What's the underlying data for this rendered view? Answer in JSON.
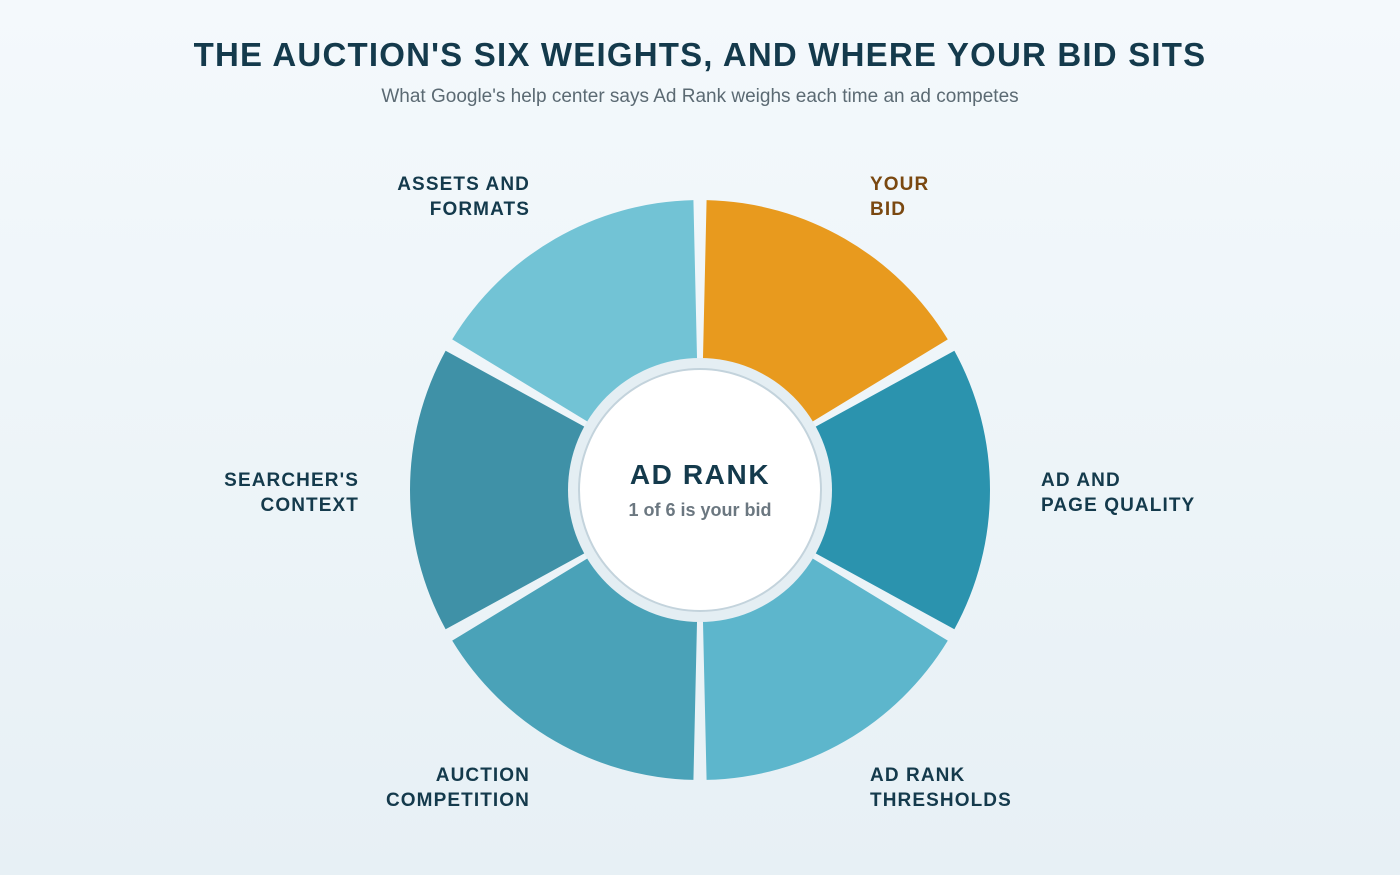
{
  "header": {
    "title": "THE AUCTION'S SIX WEIGHTS, AND WHERE YOUR BID SITS",
    "subtitle": "What Google's help center says Ad Rank weighs each time an ad competes"
  },
  "center": {
    "title": "AD RANK",
    "subtitle": "1 of 6 is your bid"
  },
  "segments": [
    {
      "id": "your-bid",
      "line1": "YOUR",
      "line2": "BID",
      "color": "#e89a1e",
      "highlight": true
    },
    {
      "id": "ad-page-quality",
      "line1": "AD AND",
      "line2": "PAGE QUALITY",
      "color": "#2b93ae",
      "highlight": false
    },
    {
      "id": "ad-rank-thresholds",
      "line1": "AD RANK",
      "line2": "THRESHOLDS",
      "color": "#5db6cc",
      "highlight": false
    },
    {
      "id": "auction-competition",
      "line1": "AUCTION",
      "line2": "COMPETITION",
      "color": "#4aa2b8",
      "highlight": false
    },
    {
      "id": "searchers-context",
      "line1": "SEARCHER'S",
      "line2": "CONTEXT",
      "color": "#3f91a7",
      "highlight": false
    },
    {
      "id": "assets-formats",
      "line1": "ASSETS AND",
      "line2": "FORMATS",
      "color": "#72c3d5",
      "highlight": false
    }
  ]
}
